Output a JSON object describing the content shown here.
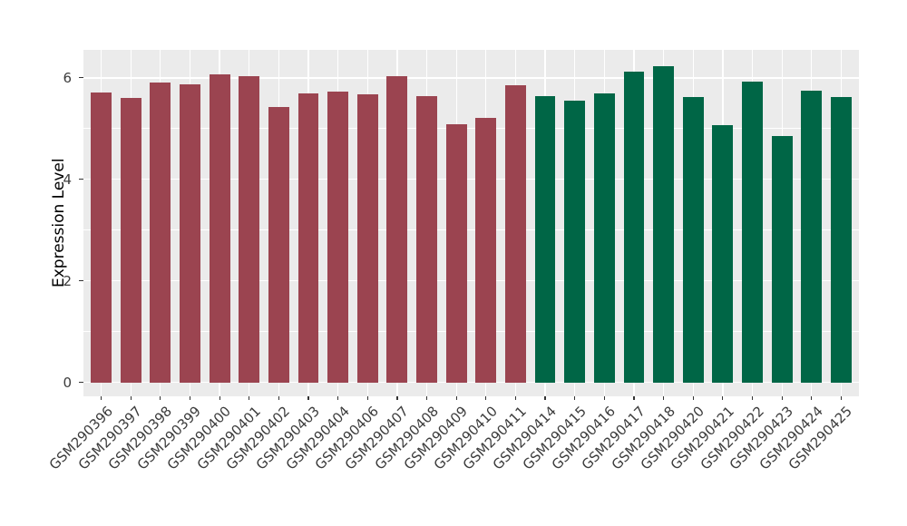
{
  "chart_data": {
    "type": "bar",
    "title": "",
    "xlabel": "",
    "ylabel": "Expression Level",
    "categories": [
      "GSM290396",
      "GSM290397",
      "GSM290398",
      "GSM290399",
      "GSM290400",
      "GSM290401",
      "GSM290402",
      "GSM290403",
      "GSM290404",
      "GSM290406",
      "GSM290407",
      "GSM290408",
      "GSM290409",
      "GSM290410",
      "GSM290411",
      "GSM290414",
      "GSM290415",
      "GSM290416",
      "GSM290417",
      "GSM290418",
      "GSM290420",
      "GSM290421",
      "GSM290422",
      "GSM290423",
      "GSM290424",
      "GSM290425"
    ],
    "values": [
      5.71,
      5.6,
      5.9,
      5.87,
      6.07,
      6.04,
      5.42,
      5.7,
      5.73,
      5.67,
      6.03,
      5.64,
      5.09,
      5.21,
      5.85,
      5.63,
      5.55,
      5.69,
      6.12,
      6.22,
      5.62,
      5.07,
      5.92,
      4.85,
      5.74,
      5.62
    ],
    "bar_group_index": [
      0,
      0,
      0,
      0,
      0,
      0,
      0,
      0,
      0,
      0,
      0,
      0,
      0,
      0,
      0,
      1,
      1,
      1,
      1,
      1,
      1,
      1,
      1,
      1,
      1,
      1
    ],
    "groups": [
      {
        "name": "group-1-maroon",
        "color": "#9B4450"
      },
      {
        "name": "group-2-green",
        "color": "#006646"
      }
    ],
    "yticks": [
      0,
      2,
      4,
      6
    ],
    "ytick_labels": [
      "0",
      "2",
      "4",
      "6"
    ],
    "minor_yticks": [
      1,
      3,
      5
    ],
    "ylim": [
      0,
      6.55
    ],
    "bar_width_fraction": 0.7,
    "legend": "none",
    "grid": "major-and-minor",
    "panel_background": "#EBEBEB",
    "grid_color": "#FFFFFF",
    "tick_mark_color": "#333333",
    "axis_text_color": "#3C3C3C",
    "axis_title_color": "#000000",
    "figure_background": "#FFFFFF"
  }
}
